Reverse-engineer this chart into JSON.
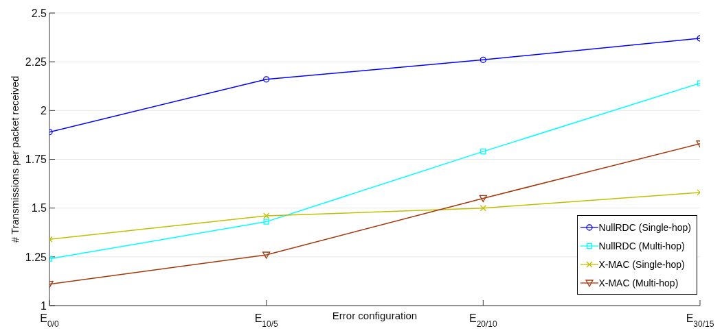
{
  "chart_data": {
    "type": "line",
    "xlabel": "Error configuration",
    "ylabel": "# Transmissions per packet received",
    "categories": [
      "E$_{0/0}$",
      "E$_{10/5}$",
      "E$_{20/10}$",
      "E$_{30/15}$"
    ],
    "ylim": [
      1,
      2.5
    ],
    "yticks": [
      1,
      1.25,
      1.5,
      1.75,
      2,
      2.25,
      2.5
    ],
    "grid": "y",
    "legend": "bottom right",
    "line_style": "solid",
    "series": [
      {
        "name": "NullRDC (Single-hop)",
        "color": "#0000ff",
        "marker": "circle",
        "values": [
          1.89,
          2.16,
          2.26,
          2.37
        ]
      },
      {
        "name": "NullRDC (Multi-hop)",
        "color": "#00ffff",
        "marker": "square",
        "values": [
          1.24,
          1.43,
          1.79,
          2.14
        ]
      },
      {
        "name": "X-MAC (Single-hop)",
        "color": "#bfbf00",
        "marker": "cross",
        "values": [
          1.34,
          1.46,
          1.5,
          1.58
        ]
      },
      {
        "name": "X-MAC (Multi-hop)",
        "color": "#a5360a",
        "marker": "triangle",
        "values": [
          1.11,
          1.26,
          1.55,
          1.83
        ]
      }
    ]
  }
}
